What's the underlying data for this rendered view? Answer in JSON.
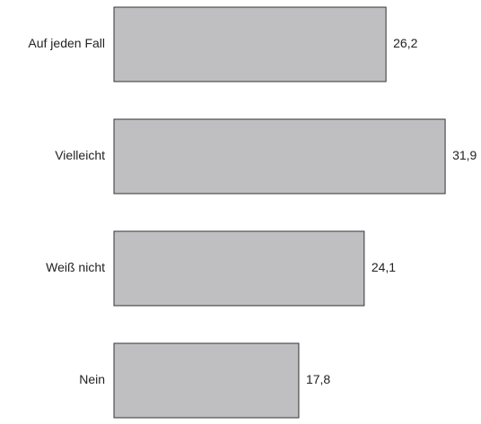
{
  "chart_data": {
    "type": "hbar",
    "categories": [
      "Auf jeden Fall",
      "Vielleicht",
      "Weiß nicht",
      "Nein"
    ],
    "values": [
      26.2,
      31.9,
      24.1,
      17.8
    ],
    "value_labels": [
      "26,2",
      "31,9",
      "24,1",
      "17,8"
    ],
    "color": "#bfbfc2"
  }
}
